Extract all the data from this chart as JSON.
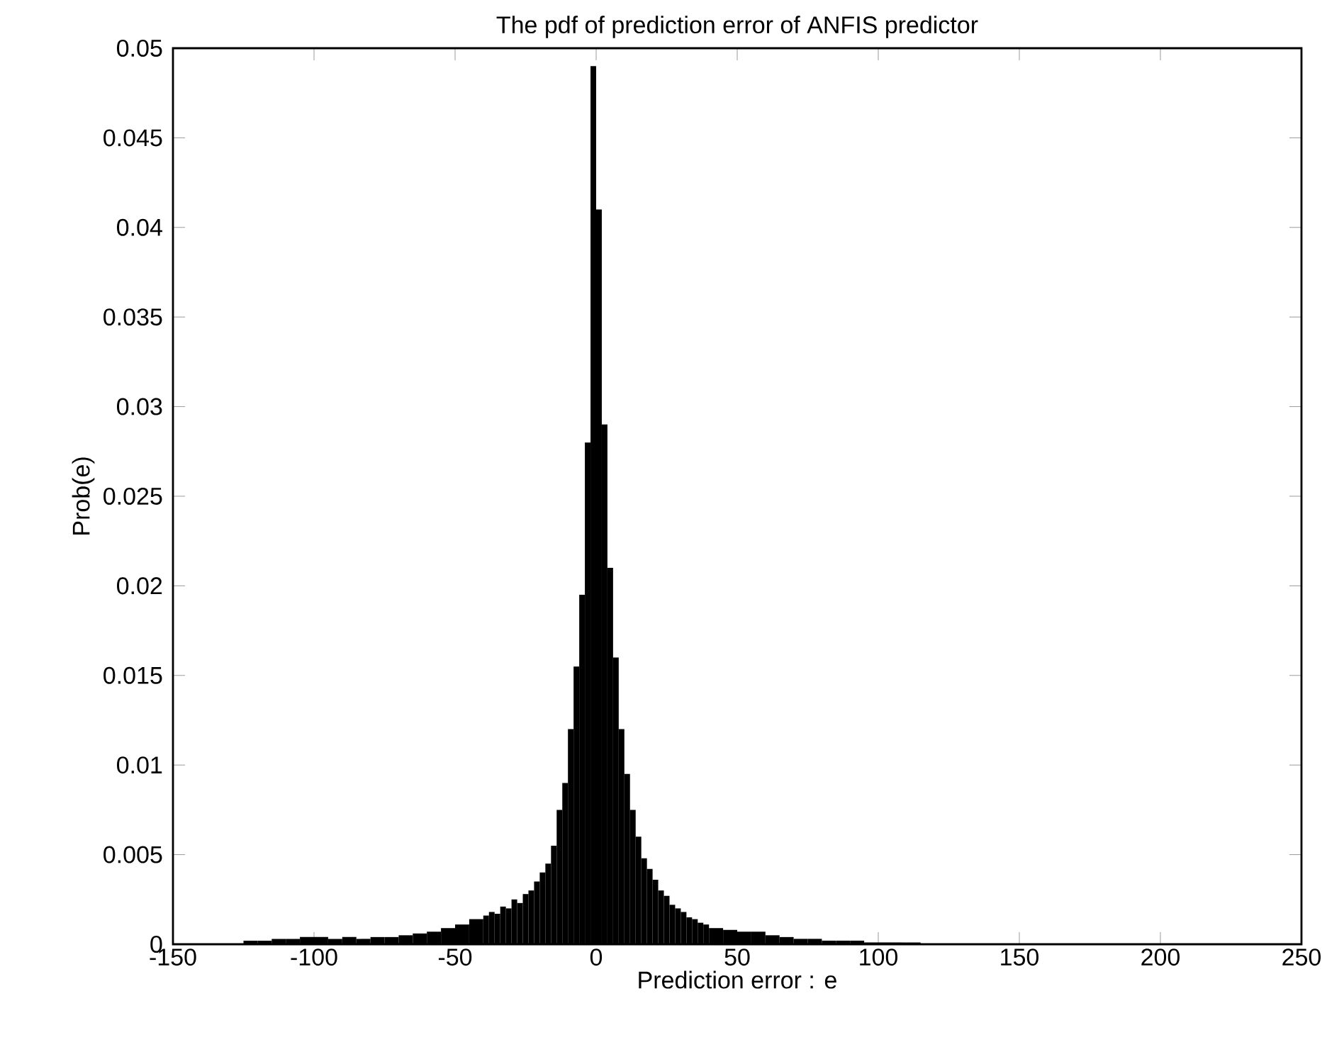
{
  "chart_data": {
    "type": "histogram",
    "title": "The pdf of prediction error of ANFIS predictor",
    "xlabel": "Prediction error : e",
    "ylabel": "Prob(e)",
    "bins": [
      -125,
      -120,
      -115,
      -110,
      -105,
      -100,
      -95,
      -90,
      -85,
      -80,
      -75,
      -70,
      -65,
      -60,
      -55,
      -50,
      -45,
      -40,
      -38,
      -36,
      -34,
      -32,
      -30,
      -28,
      -26,
      -24,
      -22,
      -20,
      -18,
      -16,
      -14,
      -12,
      -10,
      -8,
      -6,
      -4,
      -2,
      0,
      2,
      4,
      6,
      8,
      10,
      12,
      14,
      16,
      18,
      20,
      22,
      24,
      26,
      28,
      30,
      32,
      34,
      36,
      38,
      40,
      45,
      50,
      55,
      60,
      65,
      70,
      75,
      80,
      85,
      90,
      95,
      100,
      105,
      110,
      115
    ],
    "values": [
      0.0002,
      0.0002,
      0.0003,
      0.0003,
      0.0004,
      0.0004,
      0.0003,
      0.0004,
      0.0003,
      0.0004,
      0.0004,
      0.0005,
      0.0006,
      0.0007,
      0.0009,
      0.0011,
      0.0014,
      0.0016,
      0.0018,
      0.0017,
      0.0021,
      0.002,
      0.0025,
      0.0023,
      0.0028,
      0.003,
      0.0035,
      0.004,
      0.0045,
      0.0055,
      0.0075,
      0.009,
      0.012,
      0.0155,
      0.0195,
      0.028,
      0.049,
      0.041,
      0.029,
      0.021,
      0.016,
      0.012,
      0.0095,
      0.0075,
      0.006,
      0.0048,
      0.0042,
      0.0036,
      0.003,
      0.0027,
      0.0022,
      0.002,
      0.0018,
      0.0015,
      0.0014,
      0.0012,
      0.0011,
      0.0009,
      0.0008,
      0.0007,
      0.0007,
      0.0005,
      0.0004,
      0.0003,
      0.0003,
      0.0002,
      0.0002,
      0.0002,
      0.0001,
      0.0001,
      0.0001,
      0.0001
    ],
    "color": "#000000",
    "xlim": [
      -150,
      250
    ],
    "xticks": [
      -150,
      -100,
      -50,
      0,
      50,
      100,
      150,
      200,
      250
    ],
    "ylim": [
      0,
      0.05
    ],
    "yticks": [
      0,
      0.005,
      0.01,
      0.015,
      0.02,
      0.025,
      0.03,
      0.035,
      0.04,
      0.045,
      0.05
    ]
  }
}
